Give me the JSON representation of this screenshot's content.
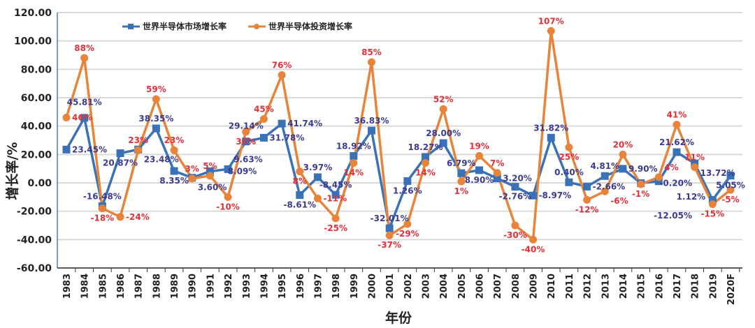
{
  "chart_data": {
    "type": "line",
    "xlabel": "年份",
    "ylabel": "增长率/%",
    "ylim": [
      -60,
      120
    ],
    "yticks": [
      "-60.00",
      "-40.00",
      "-20.00",
      "0.00",
      "20.00",
      "40.00",
      "60.00",
      "80.00",
      "100.00",
      "120.00"
    ],
    "grid": true,
    "legend_position": "top-left",
    "categories": [
      "1983",
      "1984",
      "1985",
      "1986",
      "1987",
      "1988",
      "1989",
      "1990",
      "1991",
      "1992",
      "1993",
      "1994",
      "1995",
      "1996",
      "1997",
      "1998",
      "1999",
      "2000",
      "2001",
      "2002",
      "2003",
      "2004",
      "2005",
      "2006",
      "2007",
      "2008",
      "2009",
      "2010",
      "2011",
      "2012",
      "2013",
      "2014",
      "2015",
      "2016",
      "2017",
      "2018",
      "2019",
      "2020F"
    ],
    "series": [
      {
        "name": "世界半导体市场增长率",
        "color": "#3a72b8",
        "label_color": "#3b3b8f",
        "marker": "square",
        "values": [
          23.45,
          45.81,
          -16.48,
          20.87,
          23.48,
          38.35,
          8.35,
          3.6,
          8.09,
          9.63,
          29.14,
          31.78,
          41.74,
          -8.61,
          3.97,
          -8.45,
          18.92,
          36.83,
          -32.01,
          1.26,
          18.27,
          28.0,
          6.79,
          8.9,
          3.2,
          -2.76,
          -8.97,
          31.82,
          0.4,
          -2.66,
          4.81,
          9.9,
          -0.2,
          1.12,
          21.62,
          13.72,
          -12.05,
          5.05
        ],
        "labels": [
          "23.45%",
          "45.81%",
          "-16.48%",
          "20.87%",
          "23.48%",
          "38.35%",
          "8.35%",
          "3.60%",
          "8.09%",
          "9.63%",
          "29.14%",
          "31.78%",
          "41.74%",
          "-8.61%",
          "3.97%",
          "-8.45%",
          "18.92%",
          "36.83%",
          "-32.01%",
          "1.26%",
          "18.27%",
          "28.00%",
          "6.79%",
          "8.90%",
          "3.20%",
          "-2.76%",
          "-8.97%",
          "31.82%",
          "0.40%",
          "-2.66%",
          "4.81%",
          "9.90%",
          "-0.20%",
          "1.12%",
          "21.62%",
          "13.72%",
          "-12.05%",
          "5.05%"
        ]
      },
      {
        "name": "世界半导体投资增长率",
        "color": "#e8843a",
        "label_color": "#e0303a",
        "marker": "circle",
        "values": [
          46,
          88,
          -18,
          -24,
          23,
          59,
          23,
          3,
          5,
          -10,
          36,
          45,
          76,
          8,
          -11,
          -25,
          14,
          85,
          -37,
          -29,
          14,
          52,
          1,
          19,
          7,
          -30,
          -40,
          107,
          25,
          -12,
          -6,
          20,
          -1,
          4,
          41,
          11,
          -15,
          -5
        ],
        "labels": [
          "46%",
          "88%",
          "-18%",
          "-24%",
          "23%",
          "59%",
          "23%",
          "3%",
          "5%",
          "-10%",
          "36%",
          "45%",
          "76%",
          "8%",
          "-11%",
          "-25%",
          "14%",
          "85%",
          "-37%",
          "-29%",
          "14%",
          "52%",
          "1%",
          "19%",
          "7%",
          "-30%",
          "-40%",
          "107%",
          "25%",
          "-12%",
          "-6%",
          "20%",
          "-1%",
          "4%",
          "41%",
          "11%",
          "-15%",
          "-5%"
        ]
      }
    ]
  }
}
